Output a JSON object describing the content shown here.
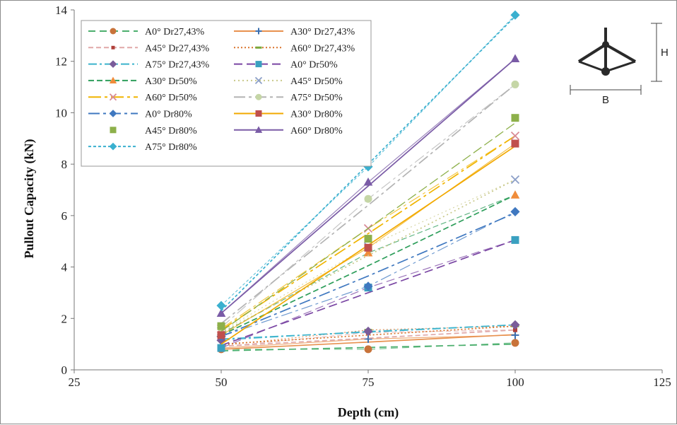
{
  "chart_data": {
    "type": "line",
    "xlabel": "Depth (cm)",
    "ylabel": "Pullout Capacity (kN)",
    "xlim": [
      25,
      125
    ],
    "ylim": [
      0,
      14
    ],
    "xticks": [
      "25",
      "50",
      "75",
      "100",
      "125"
    ],
    "yticks": [
      "0",
      "2",
      "4",
      "6",
      "8",
      "10",
      "12",
      "14"
    ],
    "grid": false,
    "legend_position": "top-left",
    "x": [
      50,
      75,
      100
    ],
    "series": [
      {
        "name": "A0° Dr27,43%",
        "color": "#4caf6e",
        "dash": "10,6",
        "marker": "circle",
        "markerColor": "#c8733a",
        "values": [
          0.8,
          0.8,
          1.05
        ],
        "trend": [
          0.74,
          0.87,
          1.0
        ]
      },
      {
        "name": "A30° Dr27,43%",
        "color": "#e8914f",
        "dash": "",
        "marker": "plus",
        "markerColor": "#3b6fb0",
        "values": [
          0.85,
          1.2,
          1.35
        ],
        "trend": [
          0.8,
          1.08,
          1.37
        ]
      },
      {
        "name": "A45° Dr27,43%",
        "color": "#e0a8a8",
        "dash": "7,4",
        "marker": "smallsquare",
        "markerColor": "#b0403a",
        "values": [
          0.9,
          1.45,
          1.55
        ],
        "trend": [
          0.92,
          1.23,
          1.55
        ]
      },
      {
        "name": "A60° Dr27,43%",
        "color": "#d9732b",
        "dash": "2,3",
        "marker": "dash",
        "markerColor": "#7aa83c",
        "values": [
          0.95,
          1.55,
          1.7
        ],
        "trend": [
          1.0,
          1.35,
          1.7
        ]
      },
      {
        "name": "A75° Dr27,43%",
        "color": "#3bb3cc",
        "dash": "12,4,3,4",
        "marker": "diamond",
        "markerColor": "#7a5c9a",
        "values": [
          1.15,
          1.5,
          1.75
        ],
        "trend": [
          1.2,
          1.47,
          1.75
        ]
      },
      {
        "name": "A0° Dr50%",
        "color": "#7a46a3",
        "dash": "12,6",
        "marker": "square",
        "markerColor": "#3aa0c0",
        "values": [
          0.85,
          3.2,
          5.05
        ],
        "trend": [
          0.95,
          3.0,
          5.05
        ]
      },
      {
        "name": "A30° Dr50%",
        "color": "#2e9e5b",
        "dash": "8,4",
        "marker": "triangle",
        "markerColor": "#f08c3a",
        "values": [
          1.4,
          4.55,
          6.8
        ],
        "trend": [
          1.35,
          4.05,
          6.8
        ]
      },
      {
        "name": "A45° Dr50%",
        "color": "#c9c98a",
        "dash": "2,4",
        "marker": "cross",
        "markerColor": "#8c9fc8",
        "values": [
          1.5,
          4.8,
          7.4
        ],
        "trend": [
          1.45,
          4.45,
          7.4
        ]
      },
      {
        "name": "A60° Dr50%",
        "color": "#f0b400",
        "dash": "18,5,4,5",
        "marker": "cross",
        "markerColor": "#d88a96",
        "values": [
          1.6,
          5.5,
          9.1
        ],
        "trend": [
          1.55,
          5.3,
          9.1
        ]
      },
      {
        "name": "A75° Dr50%",
        "color": "#b3b3b3",
        "dash": "16,5,4,5",
        "marker": "circle",
        "markerColor": "#c5d6a6",
        "values": [
          1.65,
          6.65,
          11.1
        ],
        "trend": [
          1.8,
          6.4,
          11.1
        ]
      },
      {
        "name": "A0° Dr80%",
        "color": "#3f78c0",
        "dash": "16,5,4,5",
        "marker": "diamond",
        "markerColor": "#3f78c0",
        "values": [
          1.3,
          3.25,
          6.15
        ],
        "trend": [
          1.3,
          3.65,
          6.1
        ]
      },
      {
        "name": "A30° Dr80%",
        "color": "#f2a900",
        "dash": "",
        "marker": "square",
        "markerColor": "#c0504d",
        "values": [
          1.35,
          4.75,
          8.8
        ],
        "trend": [
          1.0,
          4.85,
          8.7
        ]
      },
      {
        "name": "A45° Dr80%",
        "color": "#8db04a",
        "dash": "none",
        "marker": "square",
        "markerColor": "#8db04a",
        "values": [
          1.7,
          5.1,
          9.8
        ],
        "trend": [
          1.5,
          5.5,
          9.6
        ]
      },
      {
        "name": "A60° Dr80%",
        "color": "#7a5ba6",
        "dash": "",
        "marker": "triangle",
        "markerColor": "#7a5ba6",
        "values": [
          2.2,
          7.3,
          12.1
        ],
        "trend": [
          2.2,
          7.15,
          12.1
        ]
      },
      {
        "name": "A75° Dr80%",
        "color": "#3ab0cf",
        "dash": "4,3",
        "marker": "diamond",
        "markerColor": "#3ab0cf",
        "values": [
          2.5,
          7.9,
          13.8
        ],
        "trend": [
          2.3,
          8.0,
          13.75
        ]
      }
    ],
    "inset": {
      "height_label": "H",
      "width_label": "B"
    }
  }
}
